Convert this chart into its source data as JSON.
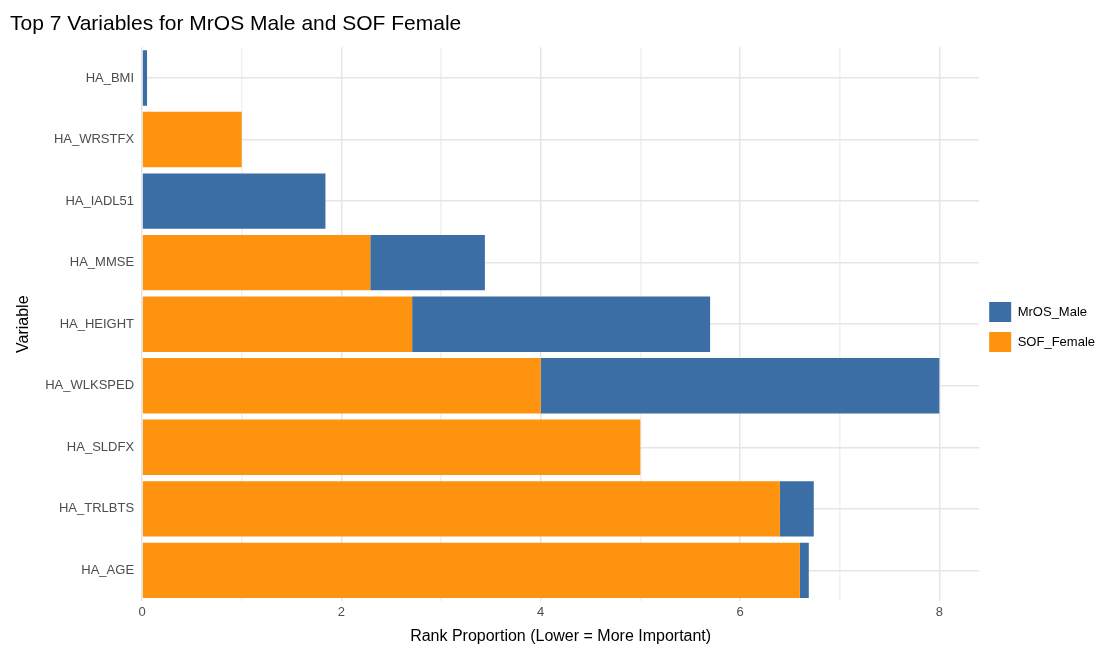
{
  "chart_data": {
    "type": "bar",
    "orientation": "horizontal",
    "stacked": true,
    "title": "Top 7 Variables for MrOS Male and SOF Female",
    "xlabel": "Rank Proportion (Lower = More Important)",
    "ylabel": "Variable",
    "categories": [
      "HA_BMI",
      "HA_WRSTFX",
      "HA_IADL51",
      "HA_MMSE",
      "HA_HEIGHT",
      "HA_WLKSPED",
      "HA_SLDFX",
      "HA_TRLBTS",
      "HA_AGE"
    ],
    "series": [
      {
        "name": "SOF_Female",
        "color": "#fd930e",
        "values": [
          null,
          1.0,
          null,
          2.29,
          2.71,
          4.0,
          5.0,
          6.4,
          6.6
        ]
      },
      {
        "name": "MrOS_Male",
        "color": "#3a6ea5",
        "values": [
          0.05,
          null,
          1.84,
          1.15,
          2.99,
          4.0,
          null,
          0.34,
          0.09
        ]
      }
    ],
    "xlim": [
      0,
      8.4
    ],
    "xticks": [
      0,
      {
        "value": 1,
        "label": null
      },
      2,
      {
        "value": 3,
        "label": null
      },
      4,
      {
        "value": 5,
        "label": null
      },
      6,
      {
        "value": 7,
        "label": null
      },
      8
    ],
    "grid": true,
    "legend": "right"
  }
}
